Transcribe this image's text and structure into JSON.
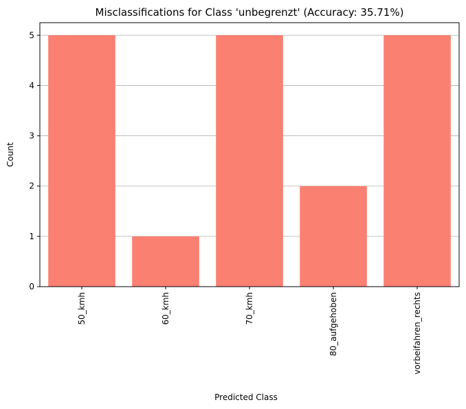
{
  "chart_data": {
    "type": "bar",
    "title": "Misclassifications for Class 'unbegrenzt' (Accuracy: 35.71%)",
    "xlabel": "Predicted Class",
    "ylabel": "Count",
    "categories": [
      "50_kmh",
      "60_kmh",
      "70_kmh",
      "80_aufgehoben",
      "vorbeifahren_rechts"
    ],
    "values": [
      5,
      1,
      5,
      2,
      5
    ],
    "ylim": [
      0,
      5.25
    ],
    "yticks": [
      0,
      1,
      2,
      3,
      4,
      5
    ],
    "grid": "y-major",
    "bar_color": "#fa8072",
    "grid_color": "#b0b0b0",
    "axis_color": "#000000"
  }
}
